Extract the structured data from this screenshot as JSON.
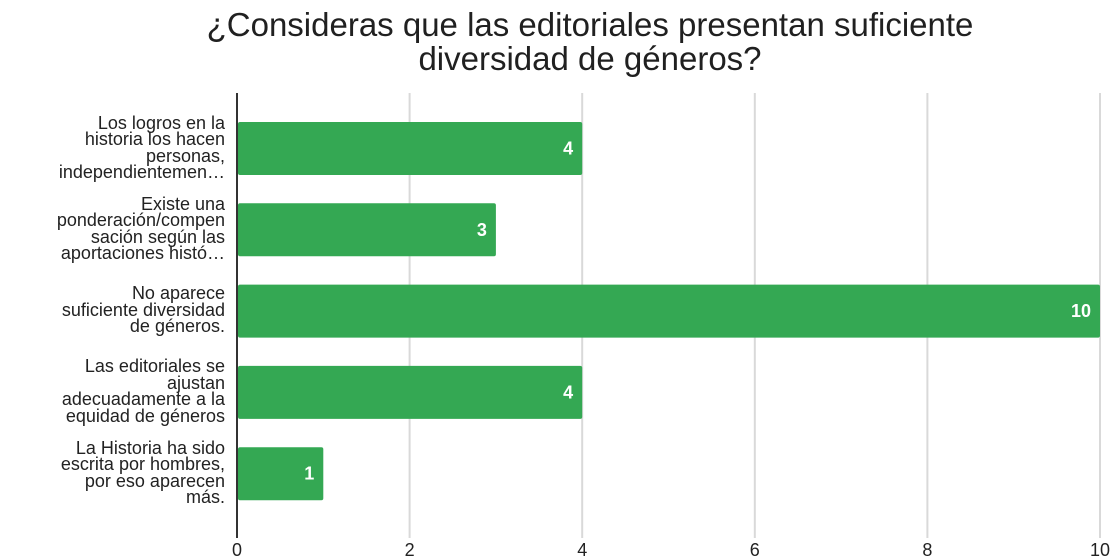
{
  "chart_data": {
    "type": "bar",
    "orientation": "horizontal",
    "title": "¿Consideras que las editoriales presentan suficiente diversidad de géneros?",
    "title_lines": [
      "¿Consideras que las editoriales presentan suficiente",
      "diversidad de géneros?"
    ],
    "categories": [
      "Los logros en la historia los hacen personas, independientemen…",
      "Existe una ponderación/compen sación según las aportaciones histó…",
      "No aparece suficiente diversidad de géneros.",
      "Las editoriales se ajustan adecuadamente a la equidad de géneros",
      "La Historia ha sido escrita por hombres, por eso aparecen más."
    ],
    "category_lines": [
      [
        "Los logros en la",
        "historia los hacen",
        "personas,",
        "independientemen…"
      ],
      [
        "Existe una",
        "ponderación/compen",
        "sación según las",
        "aportaciones histó…"
      ],
      [
        "No aparece",
        "suficiente diversidad",
        "de géneros."
      ],
      [
        "Las editoriales se",
        "ajustan",
        "adecuadamente a la",
        "equidad de géneros"
      ],
      [
        "La Historia ha sido",
        "escrita por hombres,",
        "por eso aparecen",
        "más."
      ]
    ],
    "values": [
      4,
      3,
      10,
      4,
      1
    ],
    "data_labels": [
      "4",
      "3",
      "10",
      "4",
      "1"
    ],
    "xlim": [
      0,
      10
    ],
    "x_ticks": [
      "0",
      "2",
      "4",
      "6",
      "8",
      "10"
    ],
    "grid": true,
    "legend": "none",
    "xlabel": "",
    "ylabel": "",
    "colors": {
      "bar": "#34a853",
      "grid": "#d9d9d9",
      "axis": "#333333",
      "data_label": "#ffffff",
      "tick_label": "#222222"
    }
  }
}
